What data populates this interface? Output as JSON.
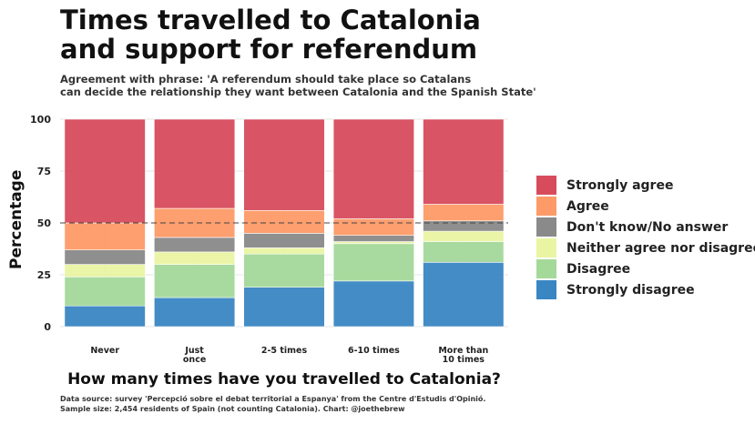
{
  "title_line1": "Times travelled to Catalonia",
  "title_line2": "and support for  referendum",
  "subtitle_line1": "Agreement with phrase: 'A referendum should take place so Catalans",
  "subtitle_line2": "can decide the relationship they want between Catalonia and the Spanish State'",
  "caption_line1": "Data source: survey 'Percepció sobre el debat territorial a Espanya' from the Centre d'Estudis d'Opinió.",
  "caption_line2": "Sample size: 2,454 residents of Spain (not counting Catalonia). Chart: @joethebrew",
  "chart_data": {
    "type": "bar",
    "stacked": true,
    "xlabel": "How many times have you travelled to Catalonia?",
    "ylabel": "Percentage",
    "ylim": [
      0,
      100
    ],
    "yticks": [
      0,
      25,
      50,
      75,
      100
    ],
    "reference_line": 50,
    "grid": true,
    "legend_position": "right",
    "categories": [
      [
        "Never"
      ],
      [
        "Just",
        "once"
      ],
      [
        "2-5 times"
      ],
      [
        "6-10 times"
      ],
      [
        "More than",
        "10 times"
      ]
    ],
    "series": [
      {
        "name": "Strongly disagree",
        "color": "#3a86c2",
        "values": [
          10,
          14,
          19,
          22,
          31
        ]
      },
      {
        "name": "Disagree",
        "color": "#a4d99a",
        "values": [
          14,
          16,
          16,
          18,
          10
        ]
      },
      {
        "name": "Neither agree nor disagree",
        "color": "#eaf5a3",
        "values": [
          6,
          6,
          3,
          1,
          5
        ]
      },
      {
        "name": "Don't know/No answer",
        "color": "#8a8a8a",
        "values": [
          7,
          7,
          7,
          3,
          5
        ]
      },
      {
        "name": "Agree",
        "color": "#fd9a68",
        "values": [
          13,
          14,
          11,
          8,
          8
        ]
      },
      {
        "name": "Strongly agree",
        "color": "#d84b5c",
        "values": [
          50,
          43,
          44,
          48,
          41
        ]
      }
    ]
  }
}
